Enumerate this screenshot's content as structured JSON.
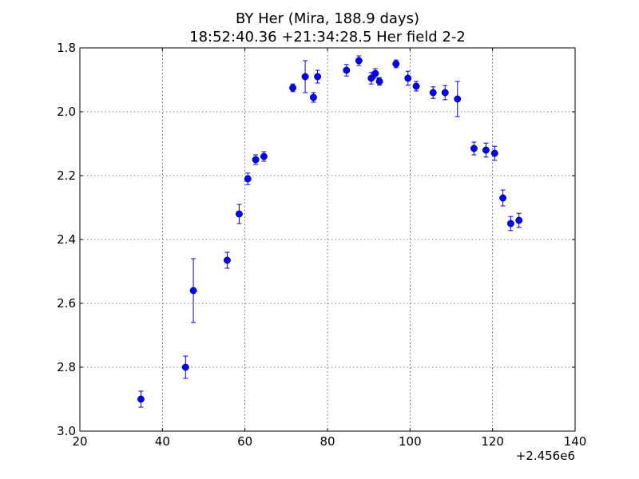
{
  "chart_data": {
    "type": "scatter",
    "title": "BY Her (Mira, 188.9 days)",
    "subtitle": "18:52:40.36 +21:34:28.5 Her field 2-2",
    "xlabel": "",
    "ylabel": "",
    "x_offset_label": "+2.456e6",
    "xlim": [
      20,
      140
    ],
    "ylim": [
      3.0,
      1.8
    ],
    "y_inverted": true,
    "grid": true,
    "x_ticks": [
      20,
      40,
      60,
      80,
      100,
      120,
      140
    ],
    "x_tick_labels": [
      "20",
      "40",
      "60",
      "80",
      "100",
      "120",
      "140"
    ],
    "y_ticks": [
      1.8,
      2.0,
      2.2,
      2.4,
      2.6,
      2.8,
      3.0
    ],
    "y_tick_labels": [
      "1.8",
      "2.0",
      "2.2",
      "2.4",
      "2.6",
      "2.8",
      "3.0"
    ],
    "marker_color": "#0000ff",
    "errorbar_color": "#0000ff",
    "series": [
      {
        "points": [
          {
            "x": 34.8,
            "y": 2.9,
            "err": 0.025
          },
          {
            "x": 45.6,
            "y": 2.8,
            "err": 0.035
          },
          {
            "x": 47.5,
            "y": 2.56,
            "err": 0.1
          },
          {
            "x": 55.7,
            "y": 2.465,
            "err": 0.025
          },
          {
            "x": 58.6,
            "y": 2.32,
            "err": 0.03
          },
          {
            "x": 60.7,
            "y": 2.21,
            "err": 0.018
          },
          {
            "x": 62.6,
            "y": 2.15,
            "err": 0.015
          },
          {
            "x": 64.6,
            "y": 2.14,
            "err": 0.015
          },
          {
            "x": 71.6,
            "y": 1.925,
            "err": 0.012
          },
          {
            "x": 74.6,
            "y": 1.89,
            "err": 0.05
          },
          {
            "x": 76.6,
            "y": 1.955,
            "err": 0.015
          },
          {
            "x": 77.6,
            "y": 1.89,
            "err": 0.02
          },
          {
            "x": 84.6,
            "y": 1.87,
            "err": 0.018
          },
          {
            "x": 87.6,
            "y": 1.84,
            "err": 0.015
          },
          {
            "x": 90.6,
            "y": 1.895,
            "err": 0.018
          },
          {
            "x": 91.6,
            "y": 1.88,
            "err": 0.015
          },
          {
            "x": 92.6,
            "y": 1.905,
            "err": 0.012
          },
          {
            "x": 96.6,
            "y": 1.85,
            "err": 0.012
          },
          {
            "x": 99.5,
            "y": 1.895,
            "err": 0.022
          },
          {
            "x": 101.5,
            "y": 1.92,
            "err": 0.015
          },
          {
            "x": 105.6,
            "y": 1.94,
            "err": 0.018
          },
          {
            "x": 108.5,
            "y": 1.94,
            "err": 0.022
          },
          {
            "x": 111.5,
            "y": 1.96,
            "err": 0.055
          },
          {
            "x": 115.5,
            "y": 2.115,
            "err": 0.02
          },
          {
            "x": 118.4,
            "y": 2.12,
            "err": 0.022
          },
          {
            "x": 120.5,
            "y": 2.13,
            "err": 0.022
          },
          {
            "x": 122.5,
            "y": 2.27,
            "err": 0.025
          },
          {
            "x": 124.4,
            "y": 2.35,
            "err": 0.022
          },
          {
            "x": 126.4,
            "y": 2.34,
            "err": 0.022
          }
        ]
      }
    ]
  }
}
